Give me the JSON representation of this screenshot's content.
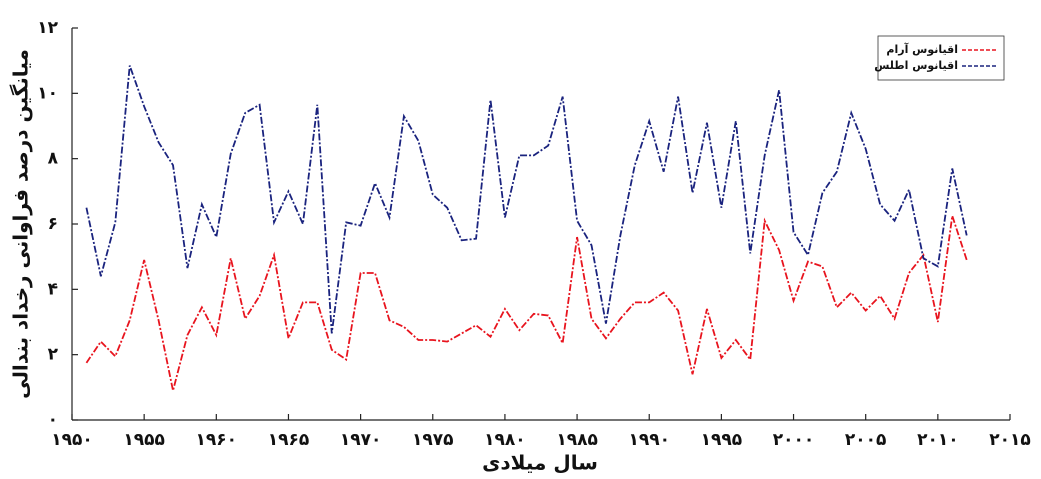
{
  "chart_data": {
    "type": "line",
    "x_label": "سال میلادی",
    "y_label": "میانگین درصد فراوانی رخداد بندالی",
    "x": [
      1951,
      1952,
      1953,
      1954,
      1955,
      1956,
      1957,
      1958,
      1959,
      1960,
      1961,
      1962,
      1963,
      1964,
      1965,
      1966,
      1967,
      1968,
      1969,
      1970,
      1971,
      1972,
      1973,
      1974,
      1975,
      1976,
      1977,
      1978,
      1979,
      1980,
      1981,
      1982,
      1983,
      1984,
      1985,
      1986,
      1987,
      1988,
      1989,
      1990,
      1991,
      1992,
      1993,
      1994,
      1995,
      1996,
      1997,
      1998,
      1999,
      2000,
      2001,
      2002,
      2003,
      2004,
      2005,
      2006,
      2007,
      2008,
      2009,
      2010,
      2011,
      2012
    ],
    "series": [
      {
        "name": "اقیانوس آرام",
        "color": "#e8141e",
        "values": [
          1.75,
          2.4,
          1.95,
          3.05,
          4.9,
          3.05,
          0.9,
          2.6,
          3.45,
          2.6,
          4.95,
          3.1,
          3.8,
          5.05,
          2.5,
          3.6,
          3.6,
          2.15,
          1.85,
          4.5,
          4.5,
          3.05,
          2.85,
          2.45,
          2.45,
          2.4,
          2.65,
          2.9,
          2.55,
          3.4,
          2.75,
          3.25,
          3.2,
          2.35,
          5.6,
          3.1,
          2.5,
          3.1,
          3.6,
          3.6,
          3.9,
          3.35,
          1.4,
          3.4,
          1.9,
          2.45,
          1.85,
          6.1,
          5.2,
          3.65,
          4.85,
          4.7,
          3.45,
          3.9,
          3.35,
          3.8,
          3.1,
          4.5,
          5.05,
          3.0,
          6.25,
          4.9
        ]
      },
      {
        "name": "اقیانوس اطلس",
        "color": "#1a237e",
        "values": [
          6.5,
          4.4,
          6.05,
          10.85,
          9.6,
          8.5,
          7.8,
          4.65,
          6.6,
          5.6,
          8.15,
          9.4,
          9.65,
          6.05,
          7.0,
          6.0,
          9.65,
          2.65,
          6.05,
          5.95,
          7.25,
          6.2,
          9.3,
          8.55,
          6.9,
          6.5,
          5.5,
          5.55,
          9.8,
          6.2,
          8.1,
          8.1,
          8.4,
          9.9,
          6.1,
          5.35,
          2.95,
          5.65,
          7.8,
          9.15,
          7.6,
          9.9,
          6.95,
          9.1,
          6.5,
          9.15,
          5.1,
          8.1,
          10.1,
          5.75,
          5.05,
          6.95,
          7.6,
          9.4,
          8.3,
          6.6,
          6.1,
          7.05,
          4.95,
          4.7,
          7.7,
          5.65
        ]
      }
    ],
    "xlim": [
      1950,
      2015
    ],
    "xticks": [
      {
        "value": 1950,
        "label": "۱۹۵۰"
      },
      {
        "value": 1955,
        "label": "۱۹۵۵"
      },
      {
        "value": 1960,
        "label": "۱۹۶۰"
      },
      {
        "value": 1965,
        "label": "۱۹۶۵"
      },
      {
        "value": 1970,
        "label": "۱۹۷۰"
      },
      {
        "value": 1975,
        "label": "۱۹۷۵"
      },
      {
        "value": 1980,
        "label": "۱۹۸۰"
      },
      {
        "value": 1985,
        "label": "۱۹۸۵"
      },
      {
        "value": 1990,
        "label": "۱۹۹۰"
      },
      {
        "value": 1995,
        "label": "۱۹۹۵"
      },
      {
        "value": 2000,
        "label": "۲۰۰۰"
      },
      {
        "value": 2005,
        "label": "۲۰۰۵"
      },
      {
        "value": 2010,
        "label": "۲۰۱۰"
      },
      {
        "value": 2015,
        "label": "۲۰۱۵"
      }
    ],
    "ylim": [
      0,
      12
    ],
    "yticks": [
      {
        "value": 0,
        "label": "۰"
      },
      {
        "value": 2,
        "label": "۲"
      },
      {
        "value": 4,
        "label": "۴"
      },
      {
        "value": 6,
        "label": "۶"
      },
      {
        "value": 8,
        "label": "۸"
      },
      {
        "value": 10,
        "label": "۱۰"
      },
      {
        "value": 12,
        "label": "۱۲"
      }
    ],
    "legend": "top-right"
  }
}
